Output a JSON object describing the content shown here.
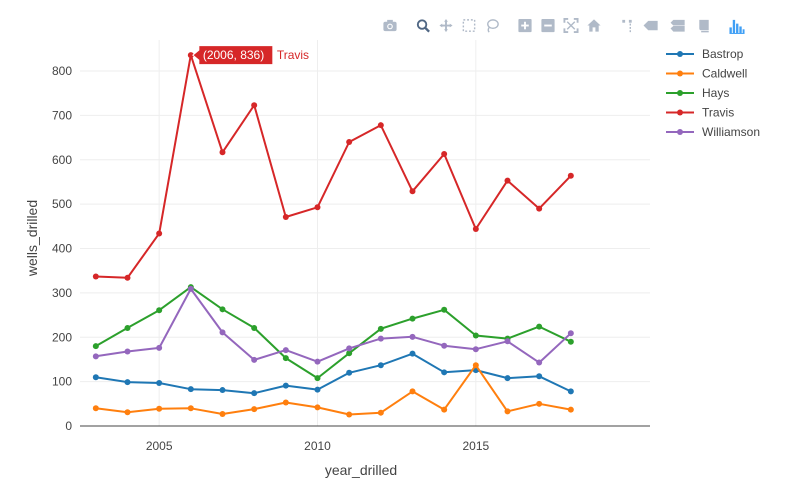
{
  "modebar": {
    "buttons": [
      "camera-icon",
      "zoom-icon",
      "pan-icon",
      "box-select-icon",
      "lasso-select-icon",
      "zoom-in-icon",
      "zoom-out-icon",
      "autoscale-icon",
      "reset-axes-icon",
      "spike-lines-icon",
      "hover-closest-icon",
      "hover-compare-icon",
      "edit-chart-icon",
      "plotly-logo-icon"
    ],
    "icon_color": "#b0bac8",
    "active_color": "#506784",
    "logo_color": "#3f9ff5"
  },
  "chart_data": {
    "type": "line",
    "xlabel": "year_drilled",
    "ylabel": "wells_drilled",
    "xlim": [
      2002.5,
      2020.5
    ],
    "ylim": [
      0,
      870
    ],
    "x_ticks": [
      2005,
      2010,
      2015
    ],
    "y_ticks": [
      0,
      100,
      200,
      300,
      400,
      500,
      600,
      700,
      800
    ],
    "grid": true,
    "legend_position": "top-right",
    "x": [
      2003,
      2004,
      2005,
      2006,
      2007,
      2008,
      2009,
      2010,
      2011,
      2012,
      2013,
      2014,
      2015,
      2016,
      2017,
      2018
    ],
    "series": [
      {
        "name": "Bastrop",
        "color": "#1f77b4",
        "values": [
          110,
          99,
          97,
          83,
          81,
          74,
          91,
          82,
          120,
          137,
          163,
          121,
          126,
          108,
          112,
          78
        ]
      },
      {
        "name": "Caldwell",
        "color": "#ff7f0e",
        "values": [
          40,
          31,
          39,
          40,
          27,
          38,
          53,
          42,
          26,
          30,
          78,
          37,
          137,
          33,
          50,
          37
        ]
      },
      {
        "name": "Hays",
        "color": "#2ca02c",
        "values": [
          180,
          221,
          261,
          313,
          263,
          221,
          153,
          108,
          164,
          219,
          242,
          262,
          204,
          197,
          224,
          190
        ]
      },
      {
        "name": "Travis",
        "color": "#d62728",
        "values": [
          337,
          334,
          434,
          836,
          617,
          723,
          471,
          493,
          640,
          678,
          529,
          613,
          444,
          553,
          490,
          564
        ]
      },
      {
        "name": "Williamson",
        "color": "#9467bd",
        "values": [
          157,
          168,
          176,
          309,
          211,
          149,
          171,
          145,
          175,
          197,
          201,
          181,
          173,
          191,
          143,
          209
        ]
      }
    ],
    "hover_label": {
      "text": "(2006, 836)",
      "series": "Travis",
      "x": 2006,
      "y": 836
    }
  }
}
